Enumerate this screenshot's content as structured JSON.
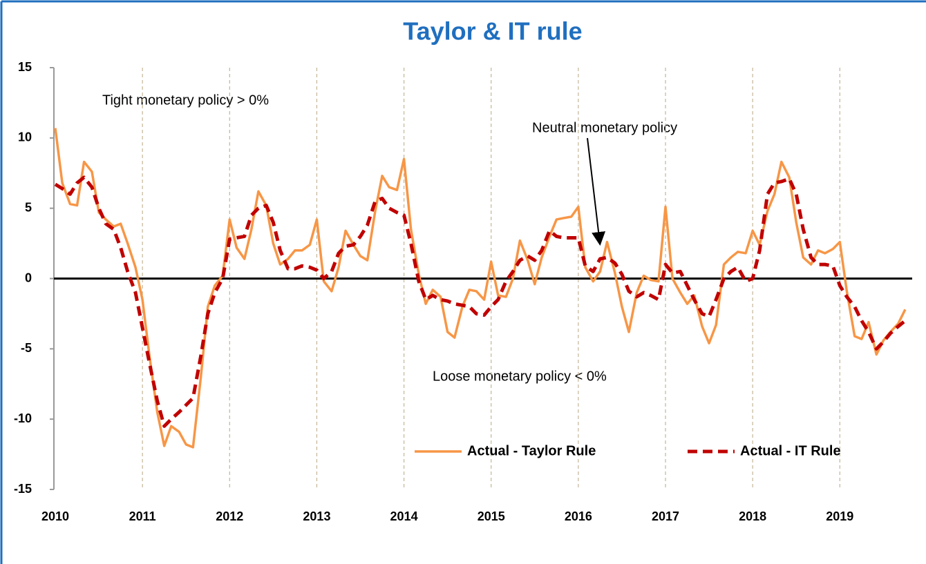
{
  "chart_data": {
    "type": "line",
    "title": "Taylor & IT rule",
    "annotations": [
      "Tight monetary policy >  0%",
      "Neutral monetary policy",
      "Loose monetary policy < 0%"
    ],
    "xlim": [
      2010,
      2019.83
    ],
    "xticks": [
      2010,
      2011,
      2012,
      2013,
      2014,
      2015,
      2016,
      2017,
      2018,
      2019
    ],
    "ylim": [
      -15,
      15
    ],
    "yticks": [
      -15,
      -10,
      -5,
      0,
      5,
      10,
      15
    ],
    "grid": true,
    "legend": "bottom",
    "x": [
      2010,
      2010.08,
      2010.17,
      2010.25,
      2010.33,
      2010.42,
      2010.5,
      2010.58,
      2010.67,
      2010.75,
      2010.83,
      2010.92,
      2011,
      2011.08,
      2011.17,
      2011.25,
      2011.33,
      2011.42,
      2011.5,
      2011.58,
      2011.67,
      2011.75,
      2011.83,
      2011.92,
      2012,
      2012.08,
      2012.17,
      2012.25,
      2012.33,
      2012.42,
      2012.5,
      2012.58,
      2012.67,
      2012.75,
      2012.83,
      2012.92,
      2013,
      2013.08,
      2013.17,
      2013.25,
      2013.33,
      2013.42,
      2013.5,
      2013.58,
      2013.67,
      2013.75,
      2013.83,
      2013.92,
      2014,
      2014.08,
      2014.17,
      2014.25,
      2014.33,
      2014.42,
      2014.5,
      2014.58,
      2014.67,
      2014.75,
      2014.83,
      2014.92,
      2015,
      2015.08,
      2015.17,
      2015.25,
      2015.33,
      2015.42,
      2015.5,
      2015.58,
      2015.67,
      2015.75,
      2015.83,
      2015.92,
      2016,
      2016.08,
      2016.17,
      2016.25,
      2016.33,
      2016.42,
      2016.5,
      2016.58,
      2016.67,
      2016.75,
      2016.83,
      2016.92,
      2017,
      2017.08,
      2017.17,
      2017.25,
      2017.33,
      2017.42,
      2017.5,
      2017.58,
      2017.67,
      2017.75,
      2017.83,
      2017.92,
      2018,
      2018.08,
      2018.17,
      2018.25,
      2018.33,
      2018.42,
      2018.5,
      2018.58,
      2018.67,
      2018.75,
      2018.83,
      2018.92,
      2019,
      2019.08,
      2019.17,
      2019.25,
      2019.33,
      2019.42,
      2019.5,
      2019.58,
      2019.67,
      2019.75
    ],
    "series": [
      {
        "name": "Actual - Taylor Rule",
        "color": "#f79646",
        "dash": false,
        "values": [
          10.7,
          6.8,
          5.3,
          5.2,
          8.3,
          7.6,
          4.7,
          4.2,
          3.7,
          3.9,
          2.5,
          0.8,
          -1.5,
          -5.5,
          -9.5,
          -11.9,
          -10.5,
          -10.9,
          -11.8,
          -12.0,
          -7.0,
          -2.0,
          -0.5,
          0.2,
          4.2,
          2.2,
          1.4,
          3.5,
          6.2,
          5.2,
          2.5,
          1.0,
          1.4,
          2.0,
          2.0,
          2.4,
          4.2,
          -0.2,
          -0.9,
          0.8,
          3.4,
          2.4,
          1.6,
          1.3,
          4.8,
          7.3,
          6.5,
          6.3,
          8.5,
          3.5,
          0.3,
          -1.8,
          -0.8,
          -1.3,
          -3.8,
          -4.2,
          -2.0,
          -0.8,
          -0.9,
          -1.5,
          1.2,
          -1.2,
          -1.3,
          0.0,
          2.7,
          1.3,
          -0.4,
          1.5,
          3.0,
          4.2,
          4.3,
          4.4,
          5.1,
          0.8,
          -0.2,
          0.5,
          2.6,
          0.4,
          -2.0,
          -3.8,
          -1.0,
          0.2,
          -0.1,
          -0.2,
          5.1,
          0.0,
          -1.0,
          -1.8,
          -1.2,
          -3.4,
          -4.6,
          -3.3,
          1.0,
          1.5,
          1.9,
          1.8,
          3.4,
          2.4,
          4.8,
          6.0,
          8.3,
          7.2,
          4.0,
          1.5,
          1.0,
          2.0,
          1.8,
          2.1,
          2.6,
          -0.9,
          -4.1,
          -4.3,
          -3.1,
          -5.4,
          -4.4,
          -3.8,
          -3.2,
          -2.2
        ]
      },
      {
        "name": "Actual - IT Rule",
        "color": "#c00000",
        "dash": true,
        "values": [
          6.7,
          6.4,
          6.0,
          6.8,
          7.2,
          6.5,
          5.0,
          3.9,
          3.5,
          2.2,
          0.5,
          -1.0,
          -3.5,
          -6.0,
          -8.7,
          -10.5,
          -10.0,
          -9.5,
          -9.0,
          -8.5,
          -5.5,
          -2.5,
          -1.0,
          0.0,
          2.8,
          2.9,
          3.0,
          4.5,
          5.0,
          5.2,
          4.0,
          2.0,
          0.7,
          0.7,
          0.9,
          0.8,
          0.6,
          0.0,
          0.5,
          1.8,
          2.3,
          2.4,
          3.0,
          3.8,
          5.5,
          5.7,
          5.0,
          4.7,
          4.5,
          2.5,
          -0.2,
          -1.5,
          -1.2,
          -1.5,
          -1.6,
          -1.8,
          -1.9,
          -2.0,
          -2.5,
          -2.6,
          -2.0,
          -1.5,
          -0.2,
          0.5,
          1.3,
          1.6,
          1.3,
          2.0,
          3.4,
          3.0,
          2.9,
          2.9,
          2.9,
          0.9,
          0.5,
          1.4,
          1.5,
          1.1,
          0.3,
          -0.9,
          -1.3,
          -1.0,
          -1.2,
          -1.5,
          1.0,
          0.4,
          0.5,
          -0.5,
          -1.5,
          -2.5,
          -2.7,
          -1.5,
          0.0,
          0.5,
          0.8,
          -0.2,
          0.0,
          2.0,
          6.0,
          6.8,
          6.9,
          7.1,
          6.0,
          3.5,
          1.5,
          1.0,
          1.0,
          0.9,
          -0.5,
          -1.3,
          -2.0,
          -3.0,
          -3.8,
          -5.0,
          -4.5,
          -3.9,
          -3.4,
          -3.0
        ]
      }
    ]
  }
}
